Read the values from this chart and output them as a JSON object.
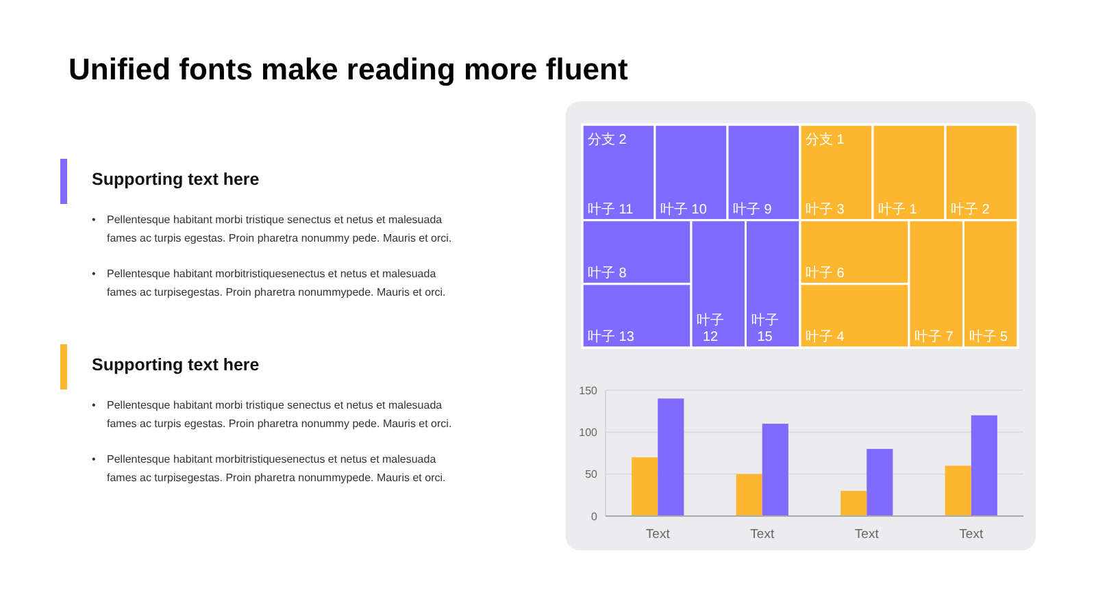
{
  "chart_data": [
    {
      "type": "other",
      "title": "Unified fonts make reading more fluent"
    },
    {
      "type": "other",
      "title": "Supporting text here",
      "color": "#7f6bff",
      "annotations": [
        "• Pellentesque habitant morbi tristique senectus et netus et malesuada fames ac turpis egestas. Proin pharetra nonummy pede. Mauris et orci.",
        "• Pellentesque habitant morbitristiquesenectus et netus et malesuada fames ac turpisegestas. Proin pharetra nonummypede. Mauris et orci."
      ]
    },
    {
      "type": "other",
      "title": "Supporting text here",
      "color": "#fdb62f",
      "annotations": [
        "• Pellentesque habitant morbi tristique senectus et netus et malesuada fames ac turpis egestas. Proin pharetra nonummy pede. Mauris et orci.",
        "• Pellentesque habitant morbitristiquesenectus et netus et malesuada fames ac turpisegestas. Proin pharetra nonummypede. Mauris et orci."
      ]
    },
    {
      "type": "other",
      "categories": [
        "叶子 11",
        "叶子 10",
        "叶子 9",
        "叶子 8",
        "叶子 13",
        "叶子 12",
        "叶子 15",
        "叶子 3",
        "叶子 1",
        "叶子 2",
        "叶子 6",
        "叶子 4",
        "叶子 7",
        "叶子 5"
      ],
      "colors": [
        "#7f6bff",
        "#7f6bff",
        "#7f6bff",
        "#7f6bff",
        "#7f6bff",
        "#7f6bff",
        "#7f6bff",
        "#fdb62f",
        "#fdb62f",
        "#fdb62f",
        "#fdb62f",
        "#fdb62f",
        "#fdb62f",
        "#fdb62f"
      ],
      "annotations": [
        {
          "text": "分支 2",
          "x": "叶子 11"
        },
        {
          "text": "分支 1",
          "x": "叶子 3"
        }
      ]
    },
    {
      "type": "bar",
      "categories": [
        "Text",
        "Text",
        "Text",
        "Text"
      ],
      "series": [
        {
          "color": "#fdb62f",
          "values": [
            70,
            50,
            30,
            60
          ]
        },
        {
          "color": "#7f6bff",
          "values": [
            140,
            110,
            80,
            120
          ]
        }
      ],
      "ylim": [
        0,
        150
      ],
      "yticks": [
        0,
        50,
        100,
        150
      ],
      "grid": "y"
    }
  ]
}
